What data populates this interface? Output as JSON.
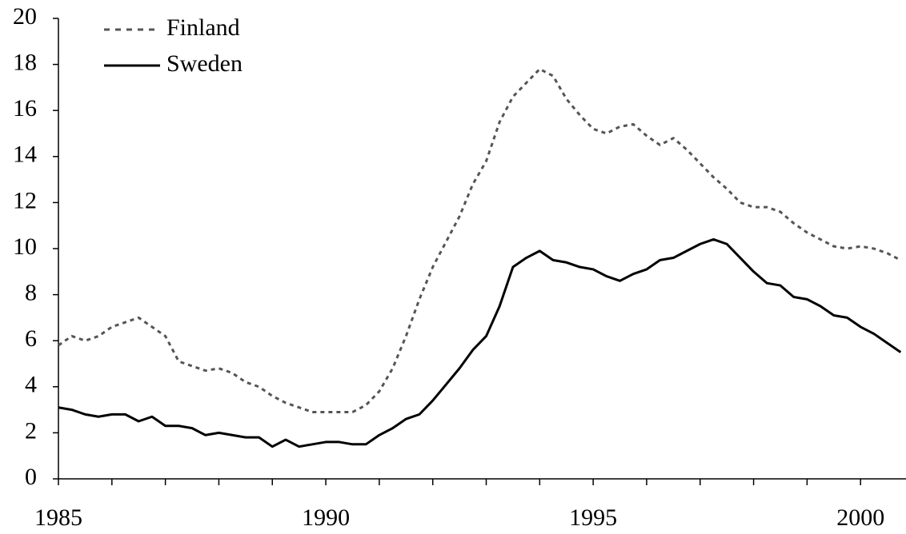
{
  "chart_data": {
    "type": "line",
    "x": [
      1985,
      1985.25,
      1985.5,
      1985.75,
      1986,
      1986.25,
      1986.5,
      1986.75,
      1987,
      1987.25,
      1987.5,
      1987.75,
      1988,
      1988.25,
      1988.5,
      1988.75,
      1989,
      1989.25,
      1989.5,
      1989.75,
      1990,
      1990.25,
      1990.5,
      1990.75,
      1991,
      1991.25,
      1991.5,
      1991.75,
      1992,
      1992.25,
      1992.5,
      1992.75,
      1993,
      1993.25,
      1993.5,
      1993.75,
      1994,
      1994.25,
      1994.5,
      1994.75,
      1995,
      1995.25,
      1995.5,
      1995.75,
      1996,
      1996.25,
      1996.5,
      1996.75,
      1997,
      1997.25,
      1997.5,
      1997.75,
      1998,
      1998.25,
      1998.5,
      1998.75,
      1999,
      1999.25,
      1999.5,
      1999.75,
      2000,
      2000.25,
      2000.5,
      2000.75
    ],
    "series": [
      {
        "name": "Finland",
        "color": "#555555",
        "dashed": true,
        "values": [
          5.8,
          6.2,
          6.0,
          6.2,
          6.6,
          6.8,
          7.0,
          6.6,
          6.2,
          5.1,
          4.9,
          4.7,
          4.8,
          4.6,
          4.2,
          4.0,
          3.6,
          3.3,
          3.1,
          2.9,
          2.9,
          2.9,
          2.9,
          3.2,
          3.8,
          4.8,
          6.2,
          7.8,
          9.2,
          10.3,
          11.4,
          12.8,
          13.8,
          15.5,
          16.6,
          17.2,
          17.8,
          17.5,
          16.5,
          15.8,
          15.2,
          15.0,
          15.3,
          15.4,
          14.9,
          14.5,
          14.8,
          14.3,
          13.7,
          13.1,
          12.6,
          12.0,
          11.8,
          11.8,
          11.6,
          11.1,
          10.7,
          10.4,
          10.1,
          10.0,
          10.1,
          10.0,
          9.8,
          9.5
        ]
      },
      {
        "name": "Sweden",
        "color": "#000000",
        "dashed": false,
        "values": [
          3.1,
          3.0,
          2.8,
          2.7,
          2.8,
          2.8,
          2.5,
          2.7,
          2.3,
          2.3,
          2.2,
          1.9,
          2.0,
          1.9,
          1.8,
          1.8,
          1.4,
          1.7,
          1.4,
          1.5,
          1.6,
          1.6,
          1.5,
          1.5,
          1.9,
          2.2,
          2.6,
          2.8,
          3.4,
          4.1,
          4.8,
          5.6,
          6.2,
          7.5,
          9.2,
          9.6,
          9.9,
          9.5,
          9.4,
          9.2,
          9.1,
          8.8,
          8.6,
          8.9,
          9.1,
          9.5,
          9.6,
          9.9,
          10.2,
          10.4,
          10.2,
          9.6,
          9.0,
          8.5,
          8.4,
          7.9,
          7.8,
          7.5,
          7.1,
          7.0,
          6.6,
          6.3,
          5.9,
          5.5
        ]
      }
    ],
    "xlim": [
      1985,
      2000.85
    ],
    "xticks": [
      1985,
      1990,
      1995,
      2000
    ],
    "xminorticks": [
      1986,
      1987,
      1988,
      1989,
      1991,
      1992,
      1993,
      1994,
      1996,
      1997,
      1998,
      1999
    ],
    "ylim": [
      0,
      20
    ],
    "yticks": [
      0,
      2,
      4,
      6,
      8,
      10,
      12,
      14,
      16,
      18,
      20
    ],
    "legend": "top-left"
  }
}
